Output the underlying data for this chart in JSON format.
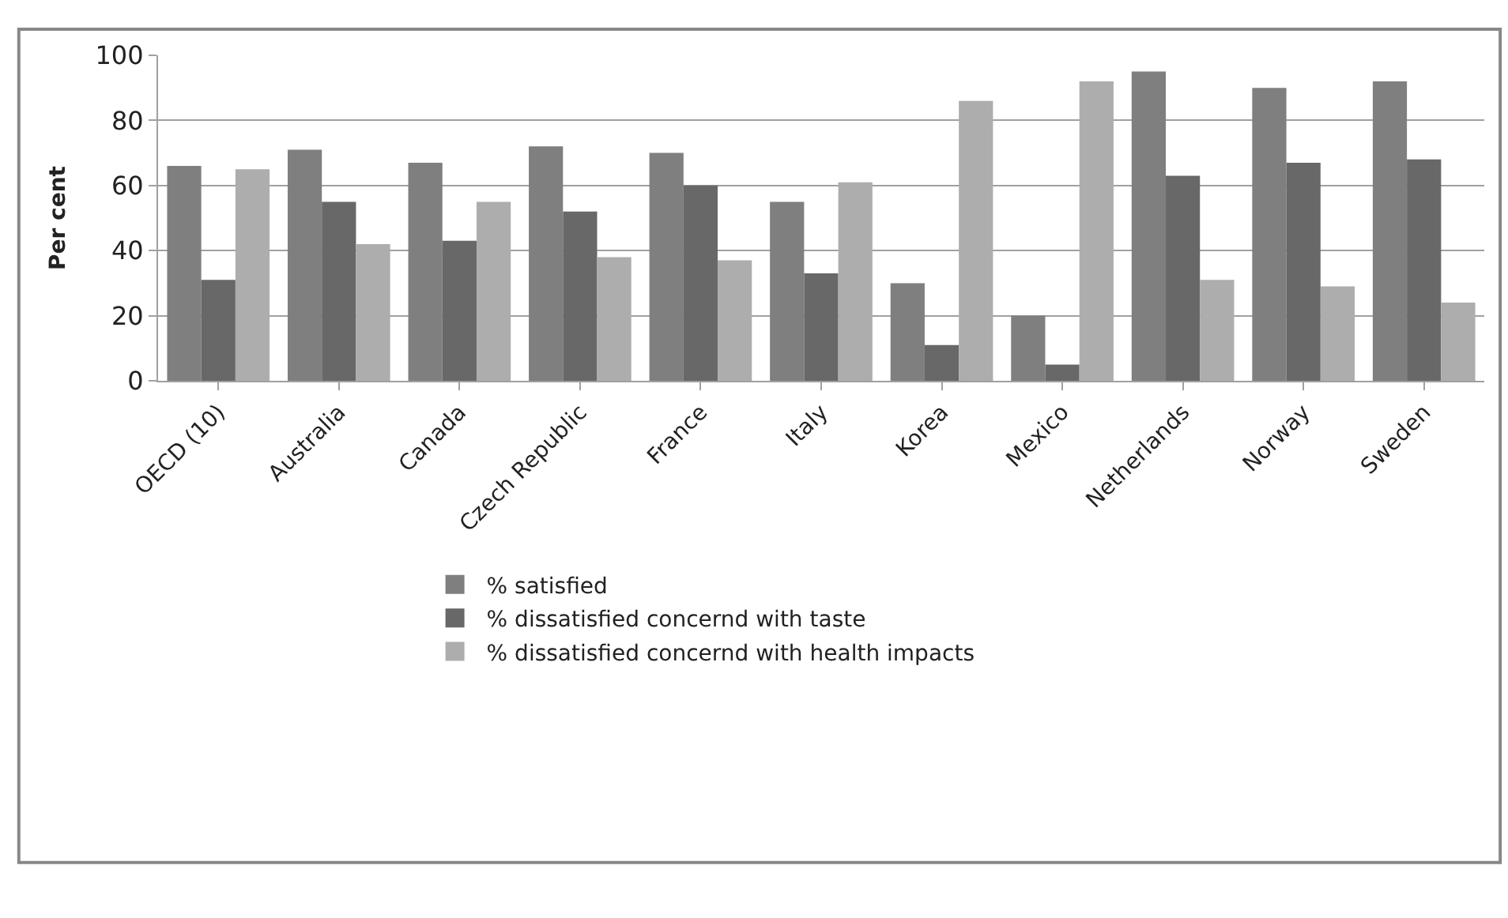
{
  "chart_data": {
    "type": "bar",
    "ylabel": "Per cent",
    "categories": [
      "OECD (10)",
      "Australia",
      "Canada",
      "Czech Republic",
      "France",
      "Italy",
      "Korea",
      "Mexico",
      "Netherlands",
      "Norway",
      "Sweden"
    ],
    "series": [
      {
        "name": "% satisfied",
        "color": "#7f7f7f",
        "values": [
          66,
          71,
          67,
          72,
          70,
          55,
          30,
          20,
          95,
          90,
          92
        ]
      },
      {
        "name": "% dissatisfied concernd with taste",
        "color": "#686868",
        "values": [
          31,
          55,
          43,
          52,
          60,
          33,
          11,
          5,
          63,
          67,
          68
        ]
      },
      {
        "name": "% dissatisfied concernd with health impacts",
        "color": "#adadad",
        "values": [
          65,
          42,
          55,
          38,
          37,
          61,
          86,
          92,
          31,
          29,
          24
        ]
      }
    ],
    "ylim": [
      0,
      100
    ],
    "yticks": [
      0,
      20,
      40,
      60,
      80,
      100
    ],
    "grid": "y",
    "legend": "bottom"
  }
}
